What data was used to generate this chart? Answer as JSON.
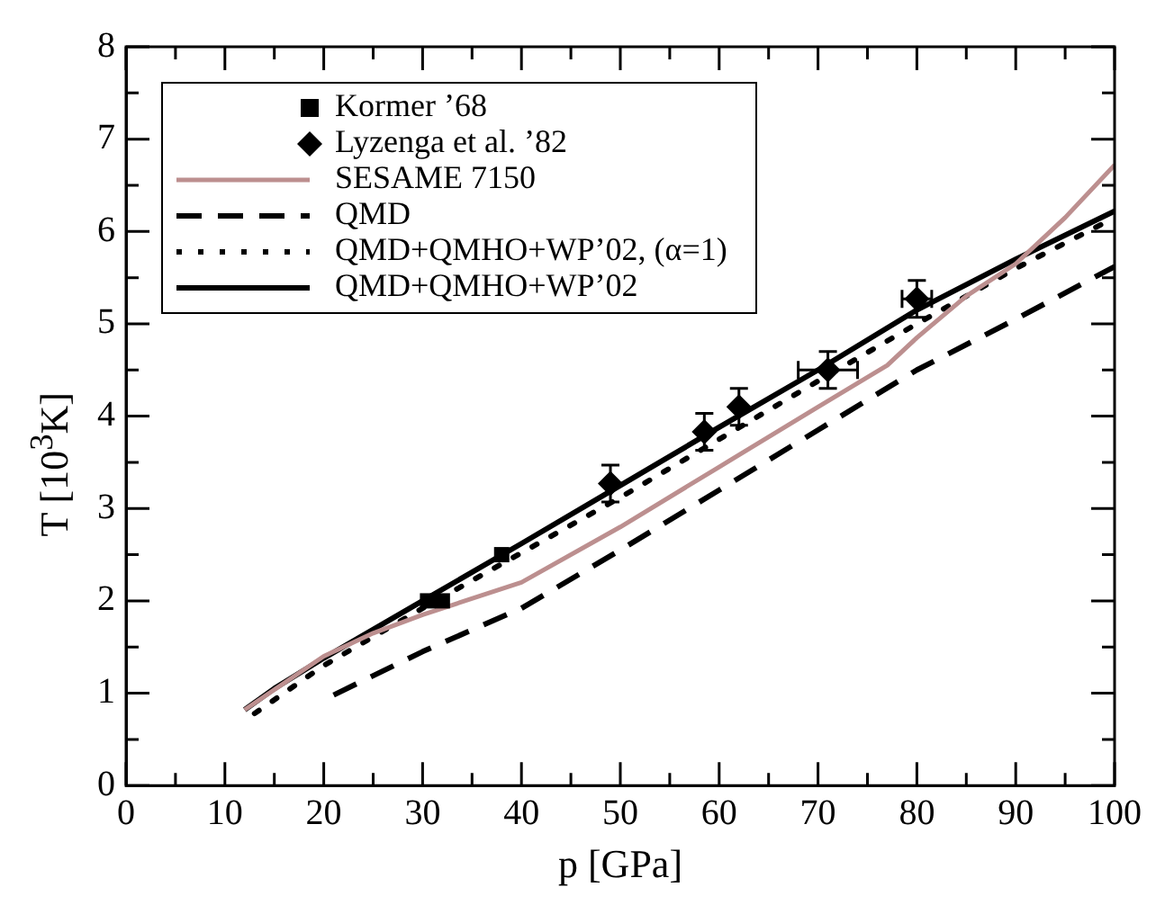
{
  "chart_data": {
    "type": "line",
    "xlabel": "p [GPa]",
    "ylabel": "T [10$^{3}$K]",
    "xlim": [
      0,
      100
    ],
    "ylim": [
      0,
      8
    ],
    "xticks": [
      0,
      {
        "value": 5,
        "label": null
      },
      10,
      {
        "value": 15,
        "label": null
      },
      20,
      {
        "value": 25,
        "label": null
      },
      30,
      {
        "value": 35,
        "label": null
      },
      40,
      {
        "value": 45,
        "label": null
      },
      50,
      {
        "value": 55,
        "label": null
      },
      60,
      {
        "value": 65,
        "label": null
      },
      70,
      {
        "value": 75,
        "label": null
      },
      80,
      {
        "value": 85,
        "label": null
      },
      90,
      {
        "value": 95,
        "label": null
      },
      100
    ],
    "yticks": [
      0,
      {
        "value": 0.5,
        "label": null
      },
      1,
      {
        "value": 1.5,
        "label": null
      },
      2,
      {
        "value": 2.5,
        "label": null
      },
      3,
      {
        "value": 3.5,
        "label": null
      },
      4,
      {
        "value": 4.5,
        "label": null
      },
      5,
      {
        "value": 5.5,
        "label": null
      },
      6,
      {
        "value": 6.5,
        "label": null
      },
      7,
      {
        "value": 7.5,
        "label": null
      },
      8
    ],
    "legend": "top left",
    "grid": false,
    "series": [
      {
        "name": "Kormer ’68",
        "type": "scatter",
        "marker": "square",
        "color": "#000000",
        "x": [
          30.5,
          32,
          38
        ],
        "values": [
          2.0,
          2.0,
          2.5
        ]
      },
      {
        "name": "Lyzenga et al. ’82",
        "type": "scatter",
        "marker": "diamond",
        "color": "#000000",
        "x": [
          49,
          58.5,
          62,
          71,
          80
        ],
        "values": [
          3.27,
          3.83,
          4.1,
          4.5,
          5.27
        ],
        "errors": [
          0.2,
          0.2,
          0.2,
          0.2,
          0.2
        ],
        "xerrors": [
          null,
          null,
          null,
          3,
          1.5
        ]
      },
      {
        "name": "SESAME 7150",
        "type": "line",
        "marker": "none",
        "line_style": "solid",
        "color": "#bc8f8f",
        "x": [
          12,
          20,
          25,
          30,
          40,
          50,
          60,
          70,
          77,
          80,
          85,
          90,
          95,
          100
        ],
        "values": [
          0.82,
          1.4,
          1.65,
          1.85,
          2.2,
          2.8,
          3.45,
          4.1,
          4.55,
          4.85,
          5.3,
          5.65,
          6.15,
          6.72
        ]
      },
      {
        "name": "QMD",
        "type": "line",
        "marker": "none",
        "line_style": "dashed",
        "color": "#000000",
        "x": [
          21,
          30,
          40,
          50,
          60,
          70,
          80,
          90,
          100
        ],
        "values": [
          0.98,
          1.45,
          1.92,
          2.55,
          3.2,
          3.85,
          4.5,
          5.05,
          5.62
        ]
      },
      {
        "name": "QMD+QMHO+WP’02, (α=1)",
        "type": "line",
        "marker": "none",
        "line_style": "dotted",
        "color": "#000000",
        "x": [
          13,
          20,
          30,
          40,
          50,
          60,
          70,
          80,
          90,
          100
        ],
        "values": [
          0.78,
          1.3,
          1.92,
          2.52,
          3.12,
          3.75,
          4.38,
          5.0,
          5.6,
          6.15
        ]
      },
      {
        "name": "QMD+QMHO+WP’02",
        "type": "line",
        "marker": "none",
        "line_style": "solid",
        "color": "#000000",
        "x": [
          12,
          15,
          20,
          30,
          40,
          50,
          60,
          70,
          80,
          90,
          100
        ],
        "values": [
          0.82,
          1.05,
          1.38,
          2.0,
          2.62,
          3.25,
          3.88,
          4.5,
          5.15,
          5.7,
          6.22
        ]
      }
    ]
  }
}
